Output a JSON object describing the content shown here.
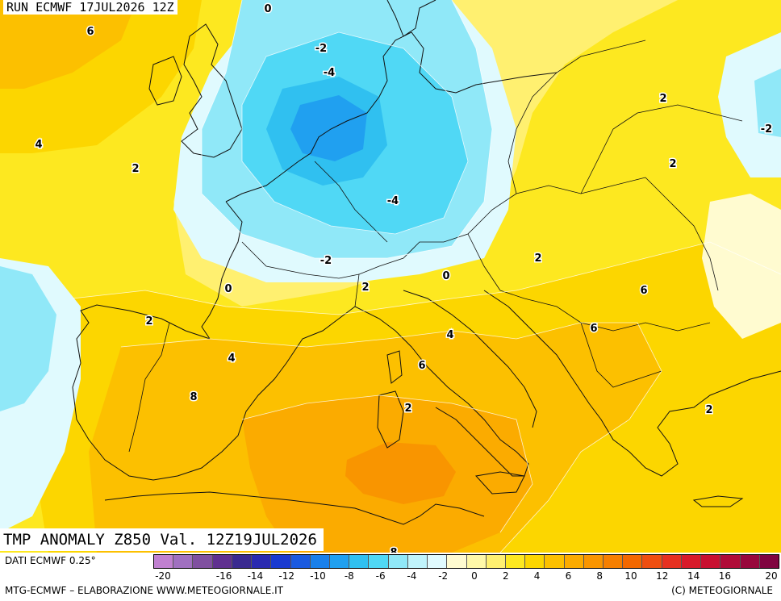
{
  "run_label": "RUN ECMWF 17JUL2026 12Z",
  "title": "TMP ANOMALY Z850 Val. 12Z19JUL2026",
  "source_label": "DATI ECMWF 0.25°",
  "credit_label": "MTG-ECMWF – ELABORAZIONE WWW.METEOGIORNALE.IT",
  "copyright_label": "(C) METEOGIORNALE",
  "colors": {
    "cold": [
      "#c080d0",
      "#a070c0",
      "#8050a0",
      "#603090",
      "#3a2a90",
      "#2a2ab0",
      "#1a3ad0",
      "#1a5ae0",
      "#1a80ea",
      "#20a0f0",
      "#30c0f0",
      "#50d8f5",
      "#90e8f8",
      "#c0f4fc",
      "#e0fafe"
    ],
    "warm": [
      "#fffbd0",
      "#fff8a8",
      "#fff070",
      "#fde820",
      "#fcd600",
      "#fcc000",
      "#fbab00",
      "#f99500",
      "#f67f00",
      "#f36800",
      "#ef4e10",
      "#e63020",
      "#d81a2a",
      "#c81030",
      "#b00c38",
      "#98083c",
      "#800440"
    ]
  },
  "legend": {
    "ticks": [
      "-20",
      "-18",
      "-16",
      "-14",
      "-12",
      "-10",
      "-8",
      "-6",
      "-4",
      "-2",
      "0",
      "2",
      "4",
      "6",
      "8",
      "10",
      "12",
      "14",
      "16",
      "18",
      "20"
    ],
    "labels": [
      "-20",
      "-16",
      "-14",
      "-12",
      "-10",
      "-8",
      "-6",
      "-4",
      "-2",
      "0",
      "2",
      "4",
      "6",
      "8",
      "10",
      "12",
      "14",
      "16",
      "20"
    ]
  },
  "contour_labels": [
    {
      "text": "0"
    },
    {
      "text": "6"
    },
    {
      "text": "-2"
    },
    {
      "text": "-4"
    },
    {
      "text": "4"
    },
    {
      "text": "2"
    },
    {
      "text": "2"
    },
    {
      "text": "-2"
    },
    {
      "text": "2"
    },
    {
      "text": "-4"
    },
    {
      "text": "-2"
    },
    {
      "text": "0"
    },
    {
      "text": "2"
    },
    {
      "text": "0"
    },
    {
      "text": "2"
    },
    {
      "text": "2"
    },
    {
      "text": "4"
    },
    {
      "text": "4"
    },
    {
      "text": "6"
    },
    {
      "text": "6"
    },
    {
      "text": "6"
    },
    {
      "text": "8"
    },
    {
      "text": "2"
    },
    {
      "text": "2"
    },
    {
      "text": "8"
    }
  ]
}
